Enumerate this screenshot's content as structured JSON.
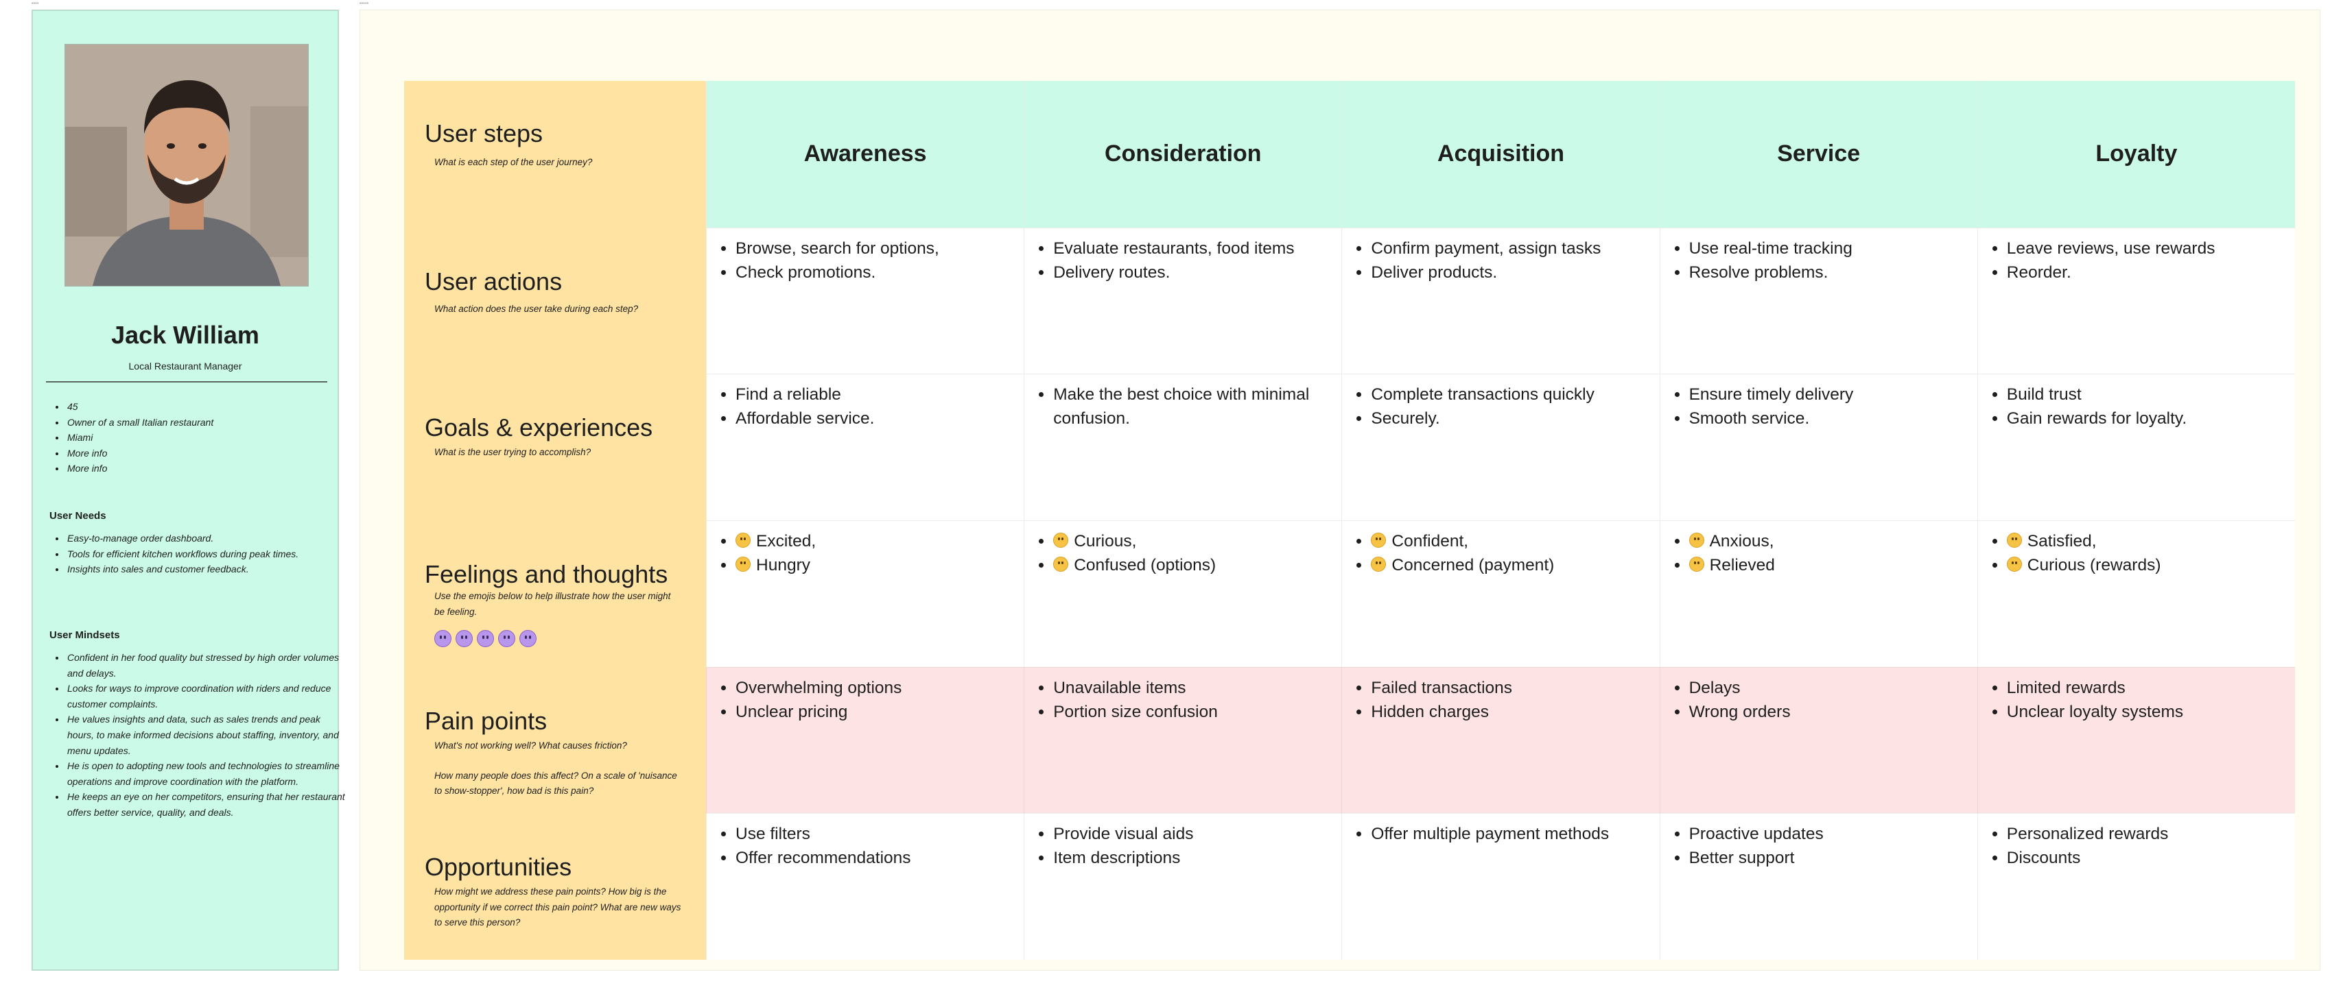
{
  "frame_tags": {
    "left": "••••",
    "right": "•••••"
  },
  "persona": {
    "photo_icon": "person-portrait",
    "name": "Jack William",
    "role": "Local Restaurant Manager",
    "facts": [
      "45",
      "Owner of a small Italian restaurant",
      "Miami",
      "More info",
      "More info"
    ],
    "needs_title": "User Needs",
    "needs": [
      "Easy-to-manage order dashboard.",
      "Tools for efficient kitchen workflows during peak times.",
      "Insights into sales and customer feedback."
    ],
    "mindsets_title": "User Mindsets",
    "mindsets": [
      "Confident in her food quality but stressed by high order volumes and delays.",
      "Looks for ways to improve coordination with riders and reduce customer complaints.",
      "He values insights and data, such as sales trends and peak hours, to make informed decisions about staffing, inventory, and menu updates.",
      "He is open to adopting new tools and technologies to streamline operations and improve coordination with the platform.",
      "He keeps an eye on her competitors, ensuring that her restaurant offers better service, quality, and deals."
    ]
  },
  "journey": {
    "stages": [
      "Awareness",
      "Consideration",
      "Acquisition",
      "Service",
      "Loyalty"
    ],
    "rows": {
      "steps": {
        "title": "User steps",
        "subtitle": "What is each step of the user journey?"
      },
      "actions": {
        "title": "User actions",
        "subtitle": "What action does the user take during each step?",
        "cells": [
          [
            "Browse, search for options,",
            "Check promotions."
          ],
          [
            "Evaluate restaurants, food items",
            "Delivery routes."
          ],
          [
            "Confirm payment, assign tasks",
            "Deliver products."
          ],
          [
            "Use real-time tracking",
            "Resolve problems."
          ],
          [
            "Leave reviews, use rewards",
            "Reorder."
          ]
        ]
      },
      "goals": {
        "title": "Goals & experiences",
        "subtitle": "What is the user trying to accomplish?",
        "cells": [
          [
            "Find a reliable",
            "Affordable service."
          ],
          [
            "Make the best choice with minimal confusion."
          ],
          [
            "Complete transactions quickly",
            "Securely."
          ],
          [
            "Ensure timely delivery",
            "Smooth service."
          ],
          [
            "Build trust",
            "Gain rewards for loyalty."
          ]
        ]
      },
      "feelings": {
        "title": "Feelings and thoughts",
        "subtitle": "Use the emojis below to help illustrate how the user might be feeling.",
        "emoji_icons": [
          "very-happy-face-icon",
          "happy-face-icon",
          "neutral-face-icon",
          "sad-face-icon",
          "angry-face-icon"
        ],
        "cells": [
          [
            "Excited,",
            "Hungry"
          ],
          [
            "Curious,",
            "Confused (options)"
          ],
          [
            "Confident,",
            "Concerned (payment)"
          ],
          [
            "Anxious,",
            "Relieved"
          ],
          [
            "Satisfied,",
            "Curious (rewards)"
          ]
        ]
      },
      "pain": {
        "title": "Pain points",
        "subtitle_1": "What's not working well? What causes friction?",
        "subtitle_2": "How many people does this affect? On a scale of 'nuisance to show-stopper', how bad is this pain?",
        "cells": [
          [
            "Overwhelming options",
            "Unclear pricing"
          ],
          [
            "Unavailable items",
            "Portion size confusion"
          ],
          [
            "Failed transactions",
            "Hidden charges"
          ],
          [
            "Delays",
            "Wrong orders"
          ],
          [
            "Limited rewards",
            "Unclear loyalty systems"
          ]
        ]
      },
      "opportunities": {
        "title": "Opportunities",
        "subtitle": "How might we address these pain points? How big is the opportunity if we correct this pain point? What are new ways to serve this person?",
        "cells": [
          [
            "Use filters",
            "Offer recommendations"
          ],
          [
            "Provide visual aids",
            "Item descriptions"
          ],
          [
            "Offer multiple payment methods"
          ],
          [
            "Proactive updates",
            "Better support"
          ],
          [
            "Personalized rewards",
            " Discounts"
          ]
        ]
      }
    }
  },
  "colors": {
    "persona_bg": "#cbfbe8",
    "row_label_bg": "#ffe3a3",
    "stage_header_bg": "#cbfbe8",
    "pain_bg": "#fde3e3",
    "canvas_bg": "#fffcf0"
  }
}
